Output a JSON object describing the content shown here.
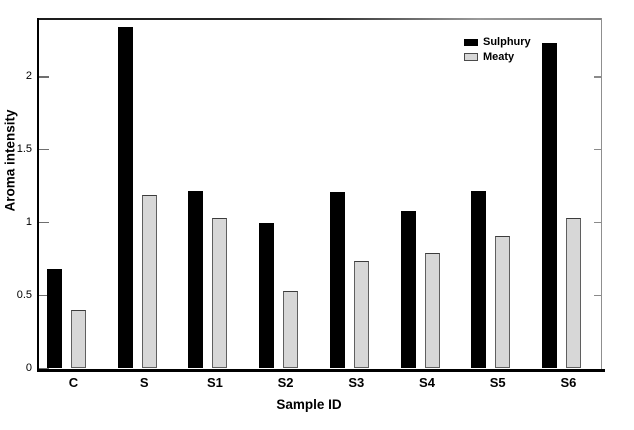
{
  "figure": {
    "background": "#ffffff",
    "bar_black": "#000000",
    "bar_gray": "#d7d7d7",
    "bar_gray_border": "#5f5f5f"
  },
  "chart_data": {
    "type": "bar",
    "title": "",
    "xlabel": "Sample ID",
    "ylabel": "Aroma intensity",
    "categories": [
      "C",
      "S",
      "S1",
      "S2",
      "S3",
      "S4",
      "S5",
      "S6"
    ],
    "series": [
      {
        "name": "Sulphury",
        "color": "#000000",
        "values": [
          0.68,
          2.34,
          1.22,
          1.0,
          1.21,
          1.08,
          1.22,
          2.23
        ]
      },
      {
        "name": "Meaty",
        "color": "#d7d7d7",
        "values": [
          0.4,
          1.19,
          1.03,
          0.53,
          0.74,
          0.79,
          0.91,
          1.03
        ]
      }
    ],
    "yticks": [
      0,
      0.5,
      1,
      1.5,
      2
    ],
    "ytick_labels": [
      "0",
      "0.5",
      "1",
      "1.5",
      "2"
    ],
    "ylim": [
      0,
      2.4
    ],
    "grid": false,
    "legend_position": "top-right"
  }
}
